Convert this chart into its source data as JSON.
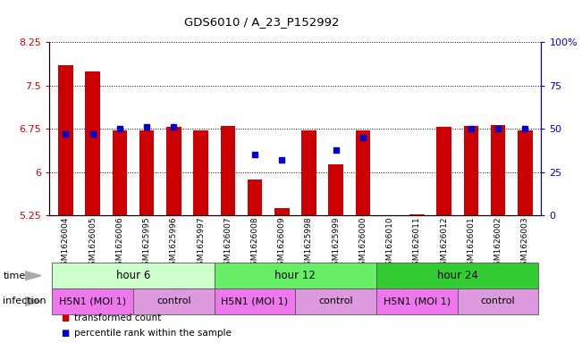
{
  "title": "GDS6010 / A_23_P152992",
  "samples": [
    "GSM1626004",
    "GSM1626005",
    "GSM1626006",
    "GSM1625995",
    "GSM1625996",
    "GSM1625997",
    "GSM1626007",
    "GSM1626008",
    "GSM1626009",
    "GSM1625998",
    "GSM1625999",
    "GSM1626000",
    "GSM1626010",
    "GSM1626011",
    "GSM1626012",
    "GSM1626001",
    "GSM1626002",
    "GSM1626003"
  ],
  "bar_values": [
    7.85,
    7.75,
    6.72,
    6.72,
    6.78,
    6.72,
    6.8,
    5.88,
    5.38,
    6.72,
    6.13,
    6.72,
    5.25,
    5.27,
    6.78,
    6.8,
    6.82,
    6.73
  ],
  "dot_values": [
    47,
    47,
    50,
    51,
    51,
    null,
    null,
    35,
    32,
    null,
    38,
    45,
    null,
    null,
    null,
    50,
    50,
    50
  ],
  "ylim_left": [
    5.25,
    8.25
  ],
  "ylim_right": [
    0,
    100
  ],
  "yticks_left": [
    5.25,
    6.0,
    6.75,
    7.5,
    8.25
  ],
  "yticks_right": [
    0,
    25,
    50,
    75,
    100
  ],
  "ytick_labels_left": [
    "5.25",
    "6",
    "6.75",
    "7.5",
    "8.25"
  ],
  "ytick_labels_right": [
    "0",
    "25",
    "50",
    "75",
    "100%"
  ],
  "bar_color": "#cc0000",
  "dot_color": "#0000cc",
  "bar_bottom": 5.25,
  "time_groups": [
    {
      "label": "hour 6",
      "start": 0,
      "end": 6,
      "color": "#ccffcc"
    },
    {
      "label": "hour 12",
      "start": 6,
      "end": 12,
      "color": "#66ee66"
    },
    {
      "label": "hour 24",
      "start": 12,
      "end": 18,
      "color": "#33cc33"
    }
  ],
  "infection_groups": [
    {
      "label": "H5N1 (MOI 1)",
      "start": 0,
      "end": 3,
      "color": "#ee77ee"
    },
    {
      "label": "control",
      "start": 3,
      "end": 6,
      "color": "#dd99dd"
    },
    {
      "label": "H5N1 (MOI 1)",
      "start": 6,
      "end": 9,
      "color": "#ee77ee"
    },
    {
      "label": "control",
      "start": 9,
      "end": 12,
      "color": "#dd99dd"
    },
    {
      "label": "H5N1 (MOI 1)",
      "start": 12,
      "end": 15,
      "color": "#ee77ee"
    },
    {
      "label": "control",
      "start": 15,
      "end": 18,
      "color": "#dd99dd"
    }
  ],
  "time_label": "time",
  "infection_label": "infection",
  "legend_items": [
    {
      "label": "transformed count",
      "color": "#cc0000"
    },
    {
      "label": "percentile rank within the sample",
      "color": "#0000cc"
    }
  ],
  "grid_color": "#000000",
  "background_color": "#ffffff",
  "xlim": [
    -0.6,
    17.6
  ]
}
